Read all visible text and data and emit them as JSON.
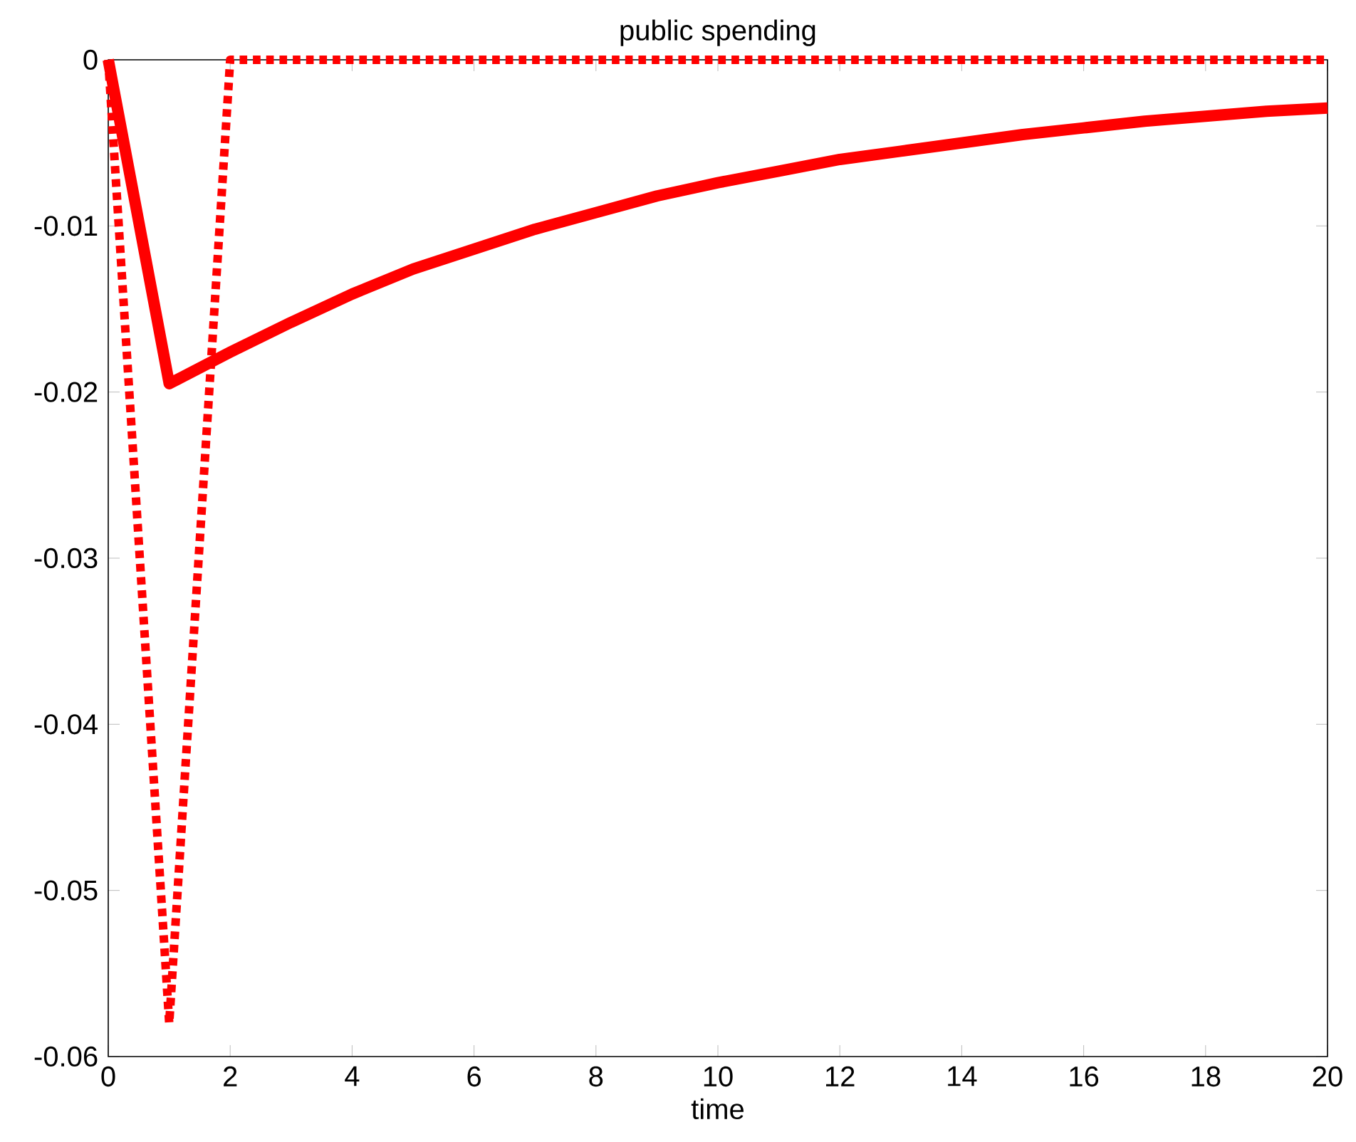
{
  "chart_data": {
    "type": "line",
    "title": "public spending",
    "xlabel": "time",
    "x": [
      0,
      1,
      2,
      3,
      4,
      5,
      6,
      7,
      8,
      9,
      10,
      11,
      12,
      13,
      14,
      15,
      16,
      17,
      18,
      19,
      20
    ],
    "series": [
      {
        "color": "#ff0000",
        "line_style": "solid",
        "values": [
          0,
          -0.0195,
          -0.0176,
          -0.0158,
          -0.0141,
          -0.0126,
          -0.0114,
          -0.0102,
          -0.0092,
          -0.0082,
          -0.0074,
          -0.0067,
          -0.006,
          -0.0055,
          -0.005,
          -0.0045,
          -0.0041,
          -0.0037,
          -0.0034,
          -0.0031,
          -0.0029
        ]
      },
      {
        "color": "#ff0000",
        "line_style": "dotted",
        "values": [
          0,
          -0.058,
          0,
          0,
          0,
          0,
          0,
          0,
          0,
          0,
          0,
          0,
          0,
          0,
          0,
          0,
          0,
          0,
          0,
          0,
          0
        ]
      }
    ],
    "xlim": [
      0,
      20
    ],
    "ylim": [
      -0.06,
      0
    ],
    "xticks": [
      0,
      2,
      4,
      6,
      8,
      10,
      12,
      14,
      16,
      18,
      20
    ],
    "yticks": [
      -0.06,
      -0.05,
      -0.04,
      -0.03,
      -0.02,
      -0.01,
      0
    ],
    "marker": "none"
  }
}
